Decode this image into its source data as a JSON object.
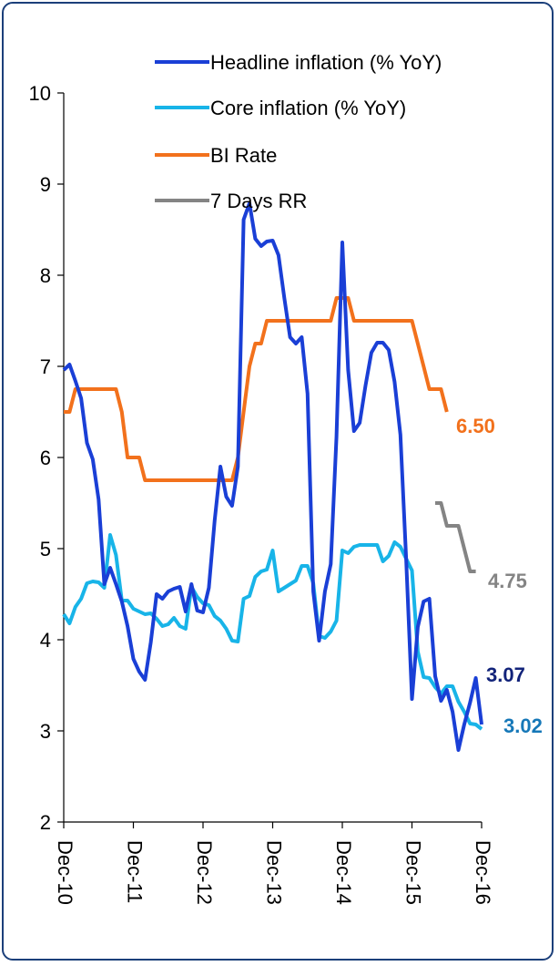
{
  "chart_data": {
    "type": "line",
    "y_ticks": [
      "2",
      "3",
      "4",
      "5",
      "6",
      "7",
      "8",
      "9",
      "10"
    ],
    "ylim": [
      2,
      10
    ],
    "x_ticks": [
      "Dec-10",
      "Dec-11",
      "Dec-12",
      "Dec-13",
      "Dec-14",
      "Dec-15",
      "Dec-16"
    ],
    "x_range": [
      "Dec-10",
      "Dec-16"
    ],
    "legend_position": "top",
    "series": [
      {
        "name": "Headline inflation (% YoY)",
        "color": "#1a3fd6",
        "end_label": "3.07",
        "end_label_color": "#12237a",
        "points": [
          [
            "Dec-10",
            6.96
          ],
          [
            "Jan-11",
            7.02
          ],
          [
            "Feb-11",
            6.84
          ],
          [
            "Mar-11",
            6.65
          ],
          [
            "Apr-11",
            6.16
          ],
          [
            "May-11",
            5.98
          ],
          [
            "Jun-11",
            5.54
          ],
          [
            "Jul-11",
            4.61
          ],
          [
            "Aug-11",
            4.79
          ],
          [
            "Sep-11",
            4.61
          ],
          [
            "Oct-11",
            4.42
          ],
          [
            "Nov-11",
            4.15
          ],
          [
            "Dec-11",
            3.79
          ],
          [
            "Jan-12",
            3.65
          ],
          [
            "Feb-12",
            3.56
          ],
          [
            "Mar-12",
            3.97
          ],
          [
            "Apr-12",
            4.5
          ],
          [
            "May-12",
            4.45
          ],
          [
            "Jun-12",
            4.53
          ],
          [
            "Jul-12",
            4.56
          ],
          [
            "Aug-12",
            4.58
          ],
          [
            "Sep-12",
            4.31
          ],
          [
            "Oct-12",
            4.61
          ],
          [
            "Nov-12",
            4.32
          ],
          [
            "Dec-12",
            4.3
          ],
          [
            "Jan-13",
            4.57
          ],
          [
            "Feb-13",
            5.31
          ],
          [
            "Mar-13",
            5.9
          ],
          [
            "Apr-13",
            5.57
          ],
          [
            "May-13",
            5.47
          ],
          [
            "Jun-13",
            5.9
          ],
          [
            "Jul-13",
            8.61
          ],
          [
            "Aug-13",
            8.79
          ],
          [
            "Sep-13",
            8.4
          ],
          [
            "Oct-13",
            8.32
          ],
          [
            "Nov-13",
            8.37
          ],
          [
            "Dec-13",
            8.38
          ],
          [
            "Jan-14",
            8.22
          ],
          [
            "Feb-14",
            7.75
          ],
          [
            "Mar-14",
            7.32
          ],
          [
            "Apr-14",
            7.25
          ],
          [
            "May-14",
            7.32
          ],
          [
            "Jun-14",
            6.7
          ],
          [
            "Jul-14",
            4.53
          ],
          [
            "Aug-14",
            3.99
          ],
          [
            "Sep-14",
            4.53
          ],
          [
            "Oct-14",
            4.83
          ],
          [
            "Nov-14",
            6.23
          ],
          [
            "Dec-14",
            8.36
          ],
          [
            "Jan-15",
            6.96
          ],
          [
            "Feb-15",
            6.29
          ],
          [
            "Mar-15",
            6.38
          ],
          [
            "Apr-15",
            6.79
          ],
          [
            "May-15",
            7.15
          ],
          [
            "Jun-15",
            7.26
          ],
          [
            "Jul-15",
            7.26
          ],
          [
            "Aug-15",
            7.18
          ],
          [
            "Sep-15",
            6.83
          ],
          [
            "Oct-15",
            6.25
          ],
          [
            "Nov-15",
            4.89
          ],
          [
            "Dec-15",
            3.35
          ],
          [
            "Jan-16",
            4.14
          ],
          [
            "Feb-16",
            4.42
          ],
          [
            "Mar-16",
            4.45
          ],
          [
            "Apr-16",
            3.6
          ],
          [
            "May-16",
            3.33
          ],
          [
            "Jun-16",
            3.45
          ],
          [
            "Jul-16",
            3.21
          ],
          [
            "Aug-16",
            2.79
          ],
          [
            "Sep-16",
            3.07
          ],
          [
            "Oct-16",
            3.31
          ],
          [
            "Nov-16",
            3.58
          ],
          [
            "Dec-16",
            3.07
          ]
        ]
      },
      {
        "name": "Core inflation (% YoY)",
        "color": "#18b4e8",
        "end_label": "3.02",
        "end_label_color": "#1678b8",
        "points": [
          [
            "Dec-10",
            4.28
          ],
          [
            "Jan-11",
            4.18
          ],
          [
            "Feb-11",
            4.36
          ],
          [
            "Mar-11",
            4.45
          ],
          [
            "Apr-11",
            4.62
          ],
          [
            "May-11",
            4.64
          ],
          [
            "Jun-11",
            4.63
          ],
          [
            "Jul-11",
            4.57
          ],
          [
            "Aug-11",
            5.15
          ],
          [
            "Sep-11",
            4.93
          ],
          [
            "Oct-11",
            4.43
          ],
          [
            "Nov-11",
            4.43
          ],
          [
            "Dec-11",
            4.34
          ],
          [
            "Jan-12",
            4.31
          ],
          [
            "Feb-12",
            4.28
          ],
          [
            "Mar-12",
            4.29
          ],
          [
            "Apr-12",
            4.23
          ],
          [
            "May-12",
            4.15
          ],
          [
            "Jun-12",
            4.17
          ],
          [
            "Jul-12",
            4.24
          ],
          [
            "Aug-12",
            4.15
          ],
          [
            "Sep-12",
            4.12
          ],
          [
            "Oct-12",
            4.58
          ],
          [
            "Nov-12",
            4.47
          ],
          [
            "Dec-12",
            4.4
          ],
          [
            "Jan-13",
            4.38
          ],
          [
            "Feb-13",
            4.26
          ],
          [
            "Mar-13",
            4.21
          ],
          [
            "Apr-13",
            4.12
          ],
          [
            "May-13",
            3.99
          ],
          [
            "Jun-13",
            3.98
          ],
          [
            "Jul-13",
            4.45
          ],
          [
            "Aug-13",
            4.48
          ],
          [
            "Sep-13",
            4.69
          ],
          [
            "Oct-13",
            4.75
          ],
          [
            "Nov-13",
            4.77
          ],
          [
            "Dec-13",
            4.98
          ],
          [
            "Jan-14",
            4.53
          ],
          [
            "Feb-14",
            4.57
          ],
          [
            "Mar-14",
            4.61
          ],
          [
            "Apr-14",
            4.65
          ],
          [
            "May-14",
            4.81
          ],
          [
            "Jun-14",
            4.81
          ],
          [
            "Jul-14",
            4.62
          ],
          [
            "Aug-14",
            4.04
          ],
          [
            "Sep-14",
            4.02
          ],
          [
            "Oct-14",
            4.09
          ],
          [
            "Nov-14",
            4.21
          ],
          [
            "Dec-14",
            4.98
          ],
          [
            "Jan-15",
            4.95
          ],
          [
            "Feb-15",
            5.02
          ],
          [
            "Mar-15",
            5.04
          ],
          [
            "Apr-15",
            5.04
          ],
          [
            "May-15",
            5.04
          ],
          [
            "Jun-15",
            5.04
          ],
          [
            "Jul-15",
            4.86
          ],
          [
            "Aug-15",
            4.92
          ],
          [
            "Sep-15",
            5.07
          ],
          [
            "Oct-15",
            5.02
          ],
          [
            "Nov-15",
            4.89
          ],
          [
            "Dec-15",
            4.76
          ],
          [
            "Jan-16",
            3.87
          ],
          [
            "Feb-16",
            3.59
          ],
          [
            "Mar-16",
            3.58
          ],
          [
            "Apr-16",
            3.48
          ],
          [
            "May-16",
            3.41
          ],
          [
            "Jun-16",
            3.49
          ],
          [
            "Jul-16",
            3.49
          ],
          [
            "Aug-16",
            3.32
          ],
          [
            "Sep-16",
            3.21
          ],
          [
            "Oct-16",
            3.08
          ],
          [
            "Nov-16",
            3.07
          ],
          [
            "Dec-16",
            3.02
          ]
        ]
      },
      {
        "name": "BI Rate",
        "color": "#f2711c",
        "end_label": "6.50",
        "end_label_color": "#f2711c",
        "points": [
          [
            "Dec-10",
            6.5
          ],
          [
            "Jan-11",
            6.5
          ],
          [
            "Feb-11",
            6.75
          ],
          [
            "Mar-11",
            6.75
          ],
          [
            "Apr-11",
            6.75
          ],
          [
            "May-11",
            6.75
          ],
          [
            "Jun-11",
            6.75
          ],
          [
            "Jul-11",
            6.75
          ],
          [
            "Aug-11",
            6.75
          ],
          [
            "Sep-11",
            6.75
          ],
          [
            "Oct-11",
            6.5
          ],
          [
            "Nov-11",
            6.0
          ],
          [
            "Dec-11",
            6.0
          ],
          [
            "Jan-12",
            6.0
          ],
          [
            "Feb-12",
            5.75
          ],
          [
            "Mar-12",
            5.75
          ],
          [
            "Apr-12",
            5.75
          ],
          [
            "May-12",
            5.75
          ],
          [
            "Jun-12",
            5.75
          ],
          [
            "Jul-12",
            5.75
          ],
          [
            "Aug-12",
            5.75
          ],
          [
            "Sep-12",
            5.75
          ],
          [
            "Oct-12",
            5.75
          ],
          [
            "Nov-12",
            5.75
          ],
          [
            "Dec-12",
            5.75
          ],
          [
            "Jan-13",
            5.75
          ],
          [
            "Feb-13",
            5.75
          ],
          [
            "Mar-13",
            5.75
          ],
          [
            "Apr-13",
            5.75
          ],
          [
            "May-13",
            5.75
          ],
          [
            "Jun-13",
            6.0
          ],
          [
            "Jul-13",
            6.5
          ],
          [
            "Aug-13",
            7.0
          ],
          [
            "Sep-13",
            7.25
          ],
          [
            "Oct-13",
            7.25
          ],
          [
            "Nov-13",
            7.5
          ],
          [
            "Dec-13",
            7.5
          ],
          [
            "Jan-14",
            7.5
          ],
          [
            "Feb-14",
            7.5
          ],
          [
            "Mar-14",
            7.5
          ],
          [
            "Apr-14",
            7.5
          ],
          [
            "May-14",
            7.5
          ],
          [
            "Jun-14",
            7.5
          ],
          [
            "Jul-14",
            7.5
          ],
          [
            "Aug-14",
            7.5
          ],
          [
            "Sep-14",
            7.5
          ],
          [
            "Oct-14",
            7.5
          ],
          [
            "Nov-14",
            7.75
          ],
          [
            "Dec-14",
            7.75
          ],
          [
            "Jan-15",
            7.75
          ],
          [
            "Feb-15",
            7.5
          ],
          [
            "Mar-15",
            7.5
          ],
          [
            "Apr-15",
            7.5
          ],
          [
            "May-15",
            7.5
          ],
          [
            "Jun-15",
            7.5
          ],
          [
            "Jul-15",
            7.5
          ],
          [
            "Aug-15",
            7.5
          ],
          [
            "Sep-15",
            7.5
          ],
          [
            "Oct-15",
            7.5
          ],
          [
            "Nov-15",
            7.5
          ],
          [
            "Dec-15",
            7.5
          ],
          [
            "Jan-16",
            7.25
          ],
          [
            "Feb-16",
            7.0
          ],
          [
            "Mar-16",
            6.75
          ],
          [
            "Apr-16",
            6.75
          ],
          [
            "May-16",
            6.75
          ],
          [
            "Jun-16",
            6.5
          ]
        ]
      },
      {
        "name": "7 Days RR",
        "color": "#848484",
        "end_label": "4.75",
        "end_label_color": "#848484",
        "points": [
          [
            "Apr-16",
            5.5
          ],
          [
            "May-16",
            5.5
          ],
          [
            "Jun-16",
            5.25
          ],
          [
            "Jul-16",
            5.25
          ],
          [
            "Aug-16",
            5.25
          ],
          [
            "Sep-16",
            5.0
          ],
          [
            "Oct-16",
            4.75
          ],
          [
            "Nov-16",
            4.75
          ]
        ]
      }
    ]
  }
}
